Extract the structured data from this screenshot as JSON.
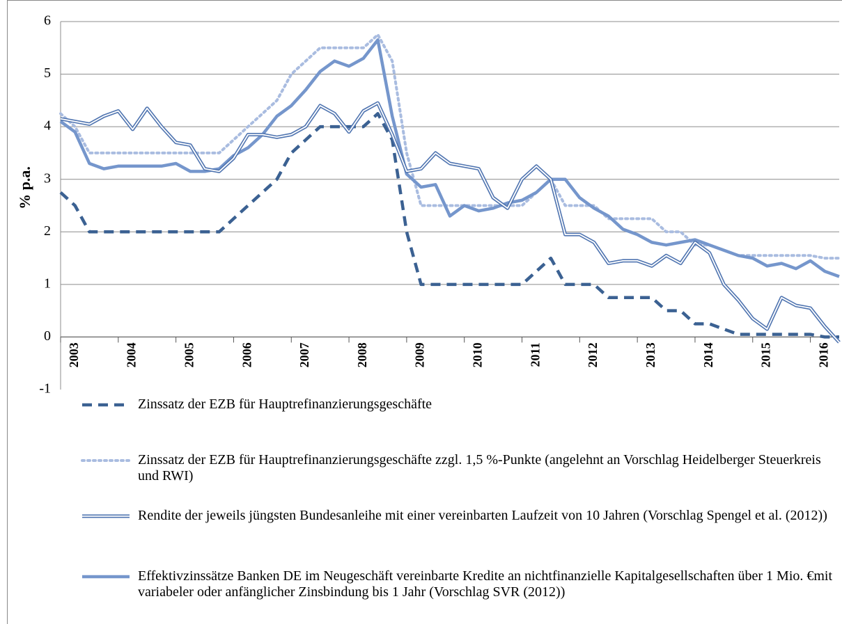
{
  "chart_data": {
    "type": "line",
    "ylabel": "% p.a.",
    "ylim": [
      -1,
      6
    ],
    "yticks": [
      -1,
      0,
      1,
      2,
      3,
      4,
      5,
      6
    ],
    "grid": true,
    "legend": "bottom",
    "categories": [
      null,
      "2003",
      null,
      null,
      null,
      "2004",
      null,
      null,
      null,
      "2005",
      null,
      null,
      null,
      "2006",
      null,
      null,
      null,
      "2007",
      null,
      null,
      null,
      "2008",
      null,
      null,
      null,
      "2009",
      null,
      null,
      null,
      "2010",
      null,
      null,
      null,
      "2011",
      null,
      null,
      null,
      "2012",
      null,
      null,
      null,
      "2013",
      null,
      null,
      null,
      "2014",
      null,
      null,
      null,
      "2015",
      null,
      null,
      null,
      "2016",
      null
    ],
    "series": [
      {
        "name": "Zinssatz der EZB für Hauptrefinanzierungsgeschäfte",
        "color": "#3b6192",
        "line_style": "dashed",
        "values": [
          2.75,
          2.5,
          2.0,
          2.0,
          2.0,
          2.0,
          2.0,
          2.0,
          2.0,
          2.0,
          2.0,
          2.0,
          2.25,
          2.5,
          2.75,
          3.0,
          3.5,
          3.75,
          4.0,
          4.0,
          4.0,
          4.0,
          4.25,
          3.75,
          2.0,
          1.0,
          1.0,
          1.0,
          1.0,
          1.0,
          1.0,
          1.0,
          1.0,
          1.25,
          1.5,
          1.0,
          1.0,
          1.0,
          0.75,
          0.75,
          0.75,
          0.75,
          0.5,
          0.5,
          0.25,
          0.25,
          0.15,
          0.05,
          0.05,
          0.05,
          0.05,
          0.05,
          0.05,
          0.0,
          0.0
        ]
      },
      {
        "name": "Zinssatz der EZB für Hauptrefinanzierungsgeschäfte zzgl. 1,5 %-Punkte (angelehnt an Vorschlag Heidelberger Steuerkreis und RWI)",
        "color": "#a9bce0",
        "line_style": "dotted",
        "values": [
          4.25,
          4.0,
          3.5,
          3.5,
          3.5,
          3.5,
          3.5,
          3.5,
          3.5,
          3.5,
          3.5,
          3.5,
          3.75,
          4.0,
          4.25,
          4.5,
          5.0,
          5.25,
          5.5,
          5.5,
          5.5,
          5.5,
          5.75,
          5.25,
          3.5,
          2.5,
          2.5,
          2.5,
          2.5,
          2.5,
          2.5,
          2.5,
          2.5,
          2.75,
          3.0,
          2.5,
          2.5,
          2.5,
          2.25,
          2.25,
          2.25,
          2.25,
          2.0,
          2.0,
          1.75,
          1.75,
          1.65,
          1.55,
          1.55,
          1.55,
          1.55,
          1.55,
          1.55,
          1.5,
          1.5
        ]
      },
      {
        "name": "Rendite der jeweils jüngsten Bundesanleihe mit einer vereinbarten Laufzeit von 10 Jahren (Vorschlag Spengel et al. (2012))",
        "color": "#4f74b0",
        "line_style": "double",
        "values": [
          4.15,
          4.1,
          4.05,
          4.2,
          4.3,
          3.95,
          4.35,
          4.0,
          3.7,
          3.65,
          3.2,
          3.15,
          3.4,
          3.85,
          3.85,
          3.8,
          3.85,
          4.0,
          4.4,
          4.25,
          3.9,
          4.3,
          4.45,
          3.85,
          3.15,
          3.2,
          3.5,
          3.3,
          3.25,
          3.2,
          2.65,
          2.45,
          3.0,
          3.25,
          3.0,
          1.95,
          1.95,
          1.8,
          1.4,
          1.45,
          1.45,
          1.35,
          1.55,
          1.4,
          1.8,
          1.6,
          1.0,
          0.7,
          0.35,
          0.15,
          0.75,
          0.6,
          0.55,
          0.2,
          -0.1
        ]
      },
      {
        "name": "Effektivzinssätze Banken DE im Neugeschäft vereinbarte Kredite an nichtfinanzielle Kapitalgesellschaften über 1 Mio. €mit variabeler oder anfänglicher Zinsbindung bis 1 Jahr (Vorschlag SVR (2012))",
        "color": "#7596cc",
        "line_style": "solid",
        "values": [
          4.1,
          3.9,
          3.3,
          3.2,
          3.25,
          3.25,
          3.25,
          3.25,
          3.3,
          3.15,
          3.15,
          3.2,
          3.45,
          3.6,
          3.85,
          4.2,
          4.4,
          4.7,
          5.05,
          5.25,
          5.15,
          5.3,
          5.65,
          4.2,
          3.1,
          2.85,
          2.9,
          2.3,
          2.5,
          2.4,
          2.45,
          2.55,
          2.6,
          2.75,
          3.0,
          3.0,
          2.65,
          2.45,
          2.3,
          2.05,
          1.95,
          1.8,
          1.75,
          1.8,
          1.85,
          1.75,
          1.65,
          1.55,
          1.5,
          1.35,
          1.4,
          1.3,
          1.45,
          1.25,
          1.15
        ]
      }
    ]
  }
}
